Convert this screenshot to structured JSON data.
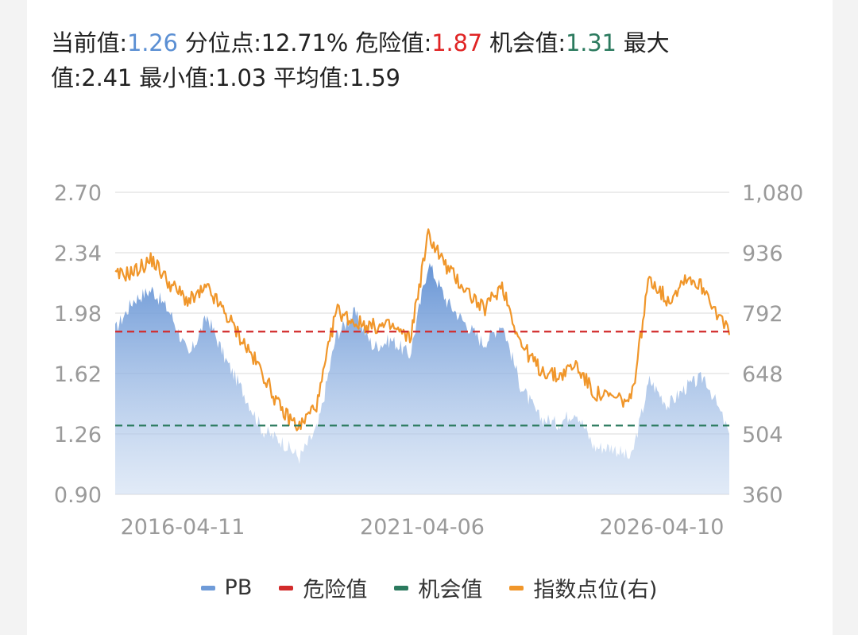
{
  "summary": {
    "current_label": "当前值:",
    "current_value": "1.26",
    "percentile_label": "分位点:",
    "percentile_value": "12.71%",
    "danger_label": "危险值:",
    "danger_value": "1.87",
    "chance_label": "机会值:",
    "chance_value": "1.31",
    "max_label": "最大值:",
    "max_value": "2.41",
    "min_label": "最小值:",
    "min_value": "1.03",
    "avg_label": "平均值:",
    "avg_value": "1.59"
  },
  "colors": {
    "pb": "#6f9bd8",
    "danger": "#d22b2b",
    "chance": "#2b7a5e",
    "index": "#f0962a",
    "axis_text": "#9a9a9a",
    "grid": "#e6e6e6"
  },
  "chart_data": {
    "type": "area",
    "x_ticks": [
      "2016-04-11",
      "2021-04-06",
      "2026-04-10"
    ],
    "y_left": {
      "ticks": [
        2.7,
        2.34,
        1.98,
        1.62,
        1.26,
        0.9
      ],
      "tick_labels": [
        "2.70",
        "2.34",
        "1.98",
        "1.62",
        "1.26",
        "0.90"
      ],
      "range": [
        0.9,
        2.7
      ]
    },
    "y_right": {
      "ticks": [
        1080,
        936,
        792,
        648,
        504,
        360
      ],
      "tick_labels": [
        "1,080",
        "936",
        "792",
        "648",
        "504",
        "360"
      ],
      "range": [
        360,
        1080
      ]
    },
    "reference_lines": [
      {
        "name": "危险值",
        "value": 1.87
      },
      {
        "name": "机会值",
        "value": 1.31
      }
    ],
    "series": [
      {
        "name": "PB",
        "axis": "left",
        "kind": "area",
        "x": [
          0.0,
          0.03,
          0.06,
          0.09,
          0.12,
          0.15,
          0.18,
          0.21,
          0.24,
          0.27,
          0.3,
          0.33,
          0.36,
          0.39,
          0.42,
          0.45,
          0.48,
          0.51,
          0.54,
          0.57,
          0.6,
          0.63,
          0.66,
          0.69,
          0.72,
          0.75,
          0.78,
          0.81,
          0.84,
          0.87,
          0.9,
          0.93,
          0.96,
          1.0
        ],
        "values": [
          1.88,
          2.06,
          2.12,
          1.98,
          1.72,
          1.96,
          1.7,
          1.5,
          1.28,
          1.22,
          1.12,
          1.3,
          1.85,
          1.98,
          1.78,
          1.82,
          1.73,
          2.28,
          2.05,
          1.92,
          1.8,
          1.92,
          1.55,
          1.36,
          1.32,
          1.4,
          1.18,
          1.18,
          1.11,
          1.58,
          1.43,
          1.54,
          1.6,
          1.26
        ]
      },
      {
        "name": "指数点位(右)",
        "axis": "right",
        "kind": "line",
        "x": [
          0.0,
          0.03,
          0.06,
          0.09,
          0.12,
          0.15,
          0.18,
          0.21,
          0.24,
          0.27,
          0.3,
          0.33,
          0.36,
          0.39,
          0.42,
          0.45,
          0.48,
          0.51,
          0.54,
          0.57,
          0.6,
          0.63,
          0.66,
          0.69,
          0.72,
          0.75,
          0.78,
          0.81,
          0.84,
          0.87,
          0.9,
          0.93,
          0.96,
          1.0
        ],
        "values": [
          880,
          890,
          920,
          860,
          820,
          850,
          790,
          720,
          650,
          560,
          520,
          580,
          800,
          770,
          760,
          760,
          730,
          980,
          900,
          850,
          800,
          860,
          720,
          660,
          640,
          670,
          600,
          590,
          580,
          880,
          820,
          880,
          850,
          740
        ]
      }
    ],
    "legend": [
      "PB",
      "危险值",
      "机会值",
      "指数点位(右)"
    ],
    "legend_position": "bottom",
    "grid": true
  }
}
